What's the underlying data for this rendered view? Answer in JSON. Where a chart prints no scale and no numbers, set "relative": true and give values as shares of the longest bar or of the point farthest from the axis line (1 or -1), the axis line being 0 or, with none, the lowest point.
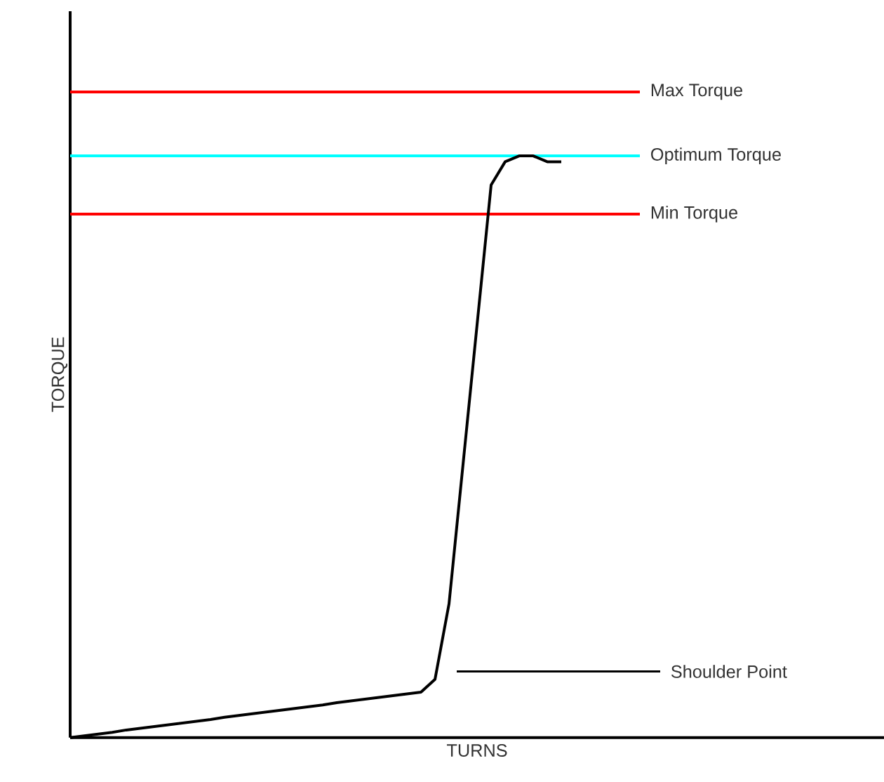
{
  "chart_data": {
    "type": "line",
    "relative": true,
    "xlabel": "TURNS",
    "ylabel": "TORQUE",
    "categories": [
      null,
      null,
      null,
      null,
      null,
      null,
      null,
      null,
      null,
      null,
      null,
      null,
      null,
      null,
      null,
      null,
      null,
      null,
      null,
      null,
      null,
      null,
      null,
      null,
      null,
      null,
      null,
      null,
      null,
      null,
      null,
      null,
      null,
      null,
      null,
      null,
      null,
      null,
      null,
      null,
      null,
      null,
      null,
      null,
      null,
      null,
      null,
      null,
      null,
      null,
      null,
      null,
      null,
      null,
      null,
      null,
      null,
      null,
      null
    ],
    "series": [
      {
        "color": "#000000",
        "values": [
          0,
          0.003,
          0.006,
          0.009,
          0.013,
          0.016,
          0.019,
          0.022,
          0.025,
          0.028,
          0.031,
          0.035,
          0.038,
          0.041,
          0.044,
          0.047,
          0.05,
          0.053,
          0.056,
          0.06,
          0.063,
          0.066,
          0.069,
          0.072,
          0.075,
          0.078,
          0.1,
          0.23,
          0.47,
          0.71,
          0.95,
          0.99,
          1.0,
          1.0,
          0.99,
          0.99,
          null,
          null,
          null,
          null,
          null,
          null,
          null,
          null,
          null,
          null,
          null,
          null,
          null,
          null,
          null,
          null,
          null,
          null,
          null,
          null,
          null,
          null,
          null
        ]
      }
    ],
    "ref_lines": [
      {
        "axis": "y",
        "value": 1.11,
        "label": "Max Torque",
        "color": "#ff0000"
      },
      {
        "axis": "y",
        "value": 1.0,
        "label": "Optimum Torque",
        "color": "#00ffff"
      },
      {
        "axis": "y",
        "value": 0.9,
        "label": "Min Torque",
        "color": "#ff0000"
      }
    ],
    "annotations": [
      "Shoulder Point"
    ],
    "marker": "none",
    "line_style": "solid"
  }
}
